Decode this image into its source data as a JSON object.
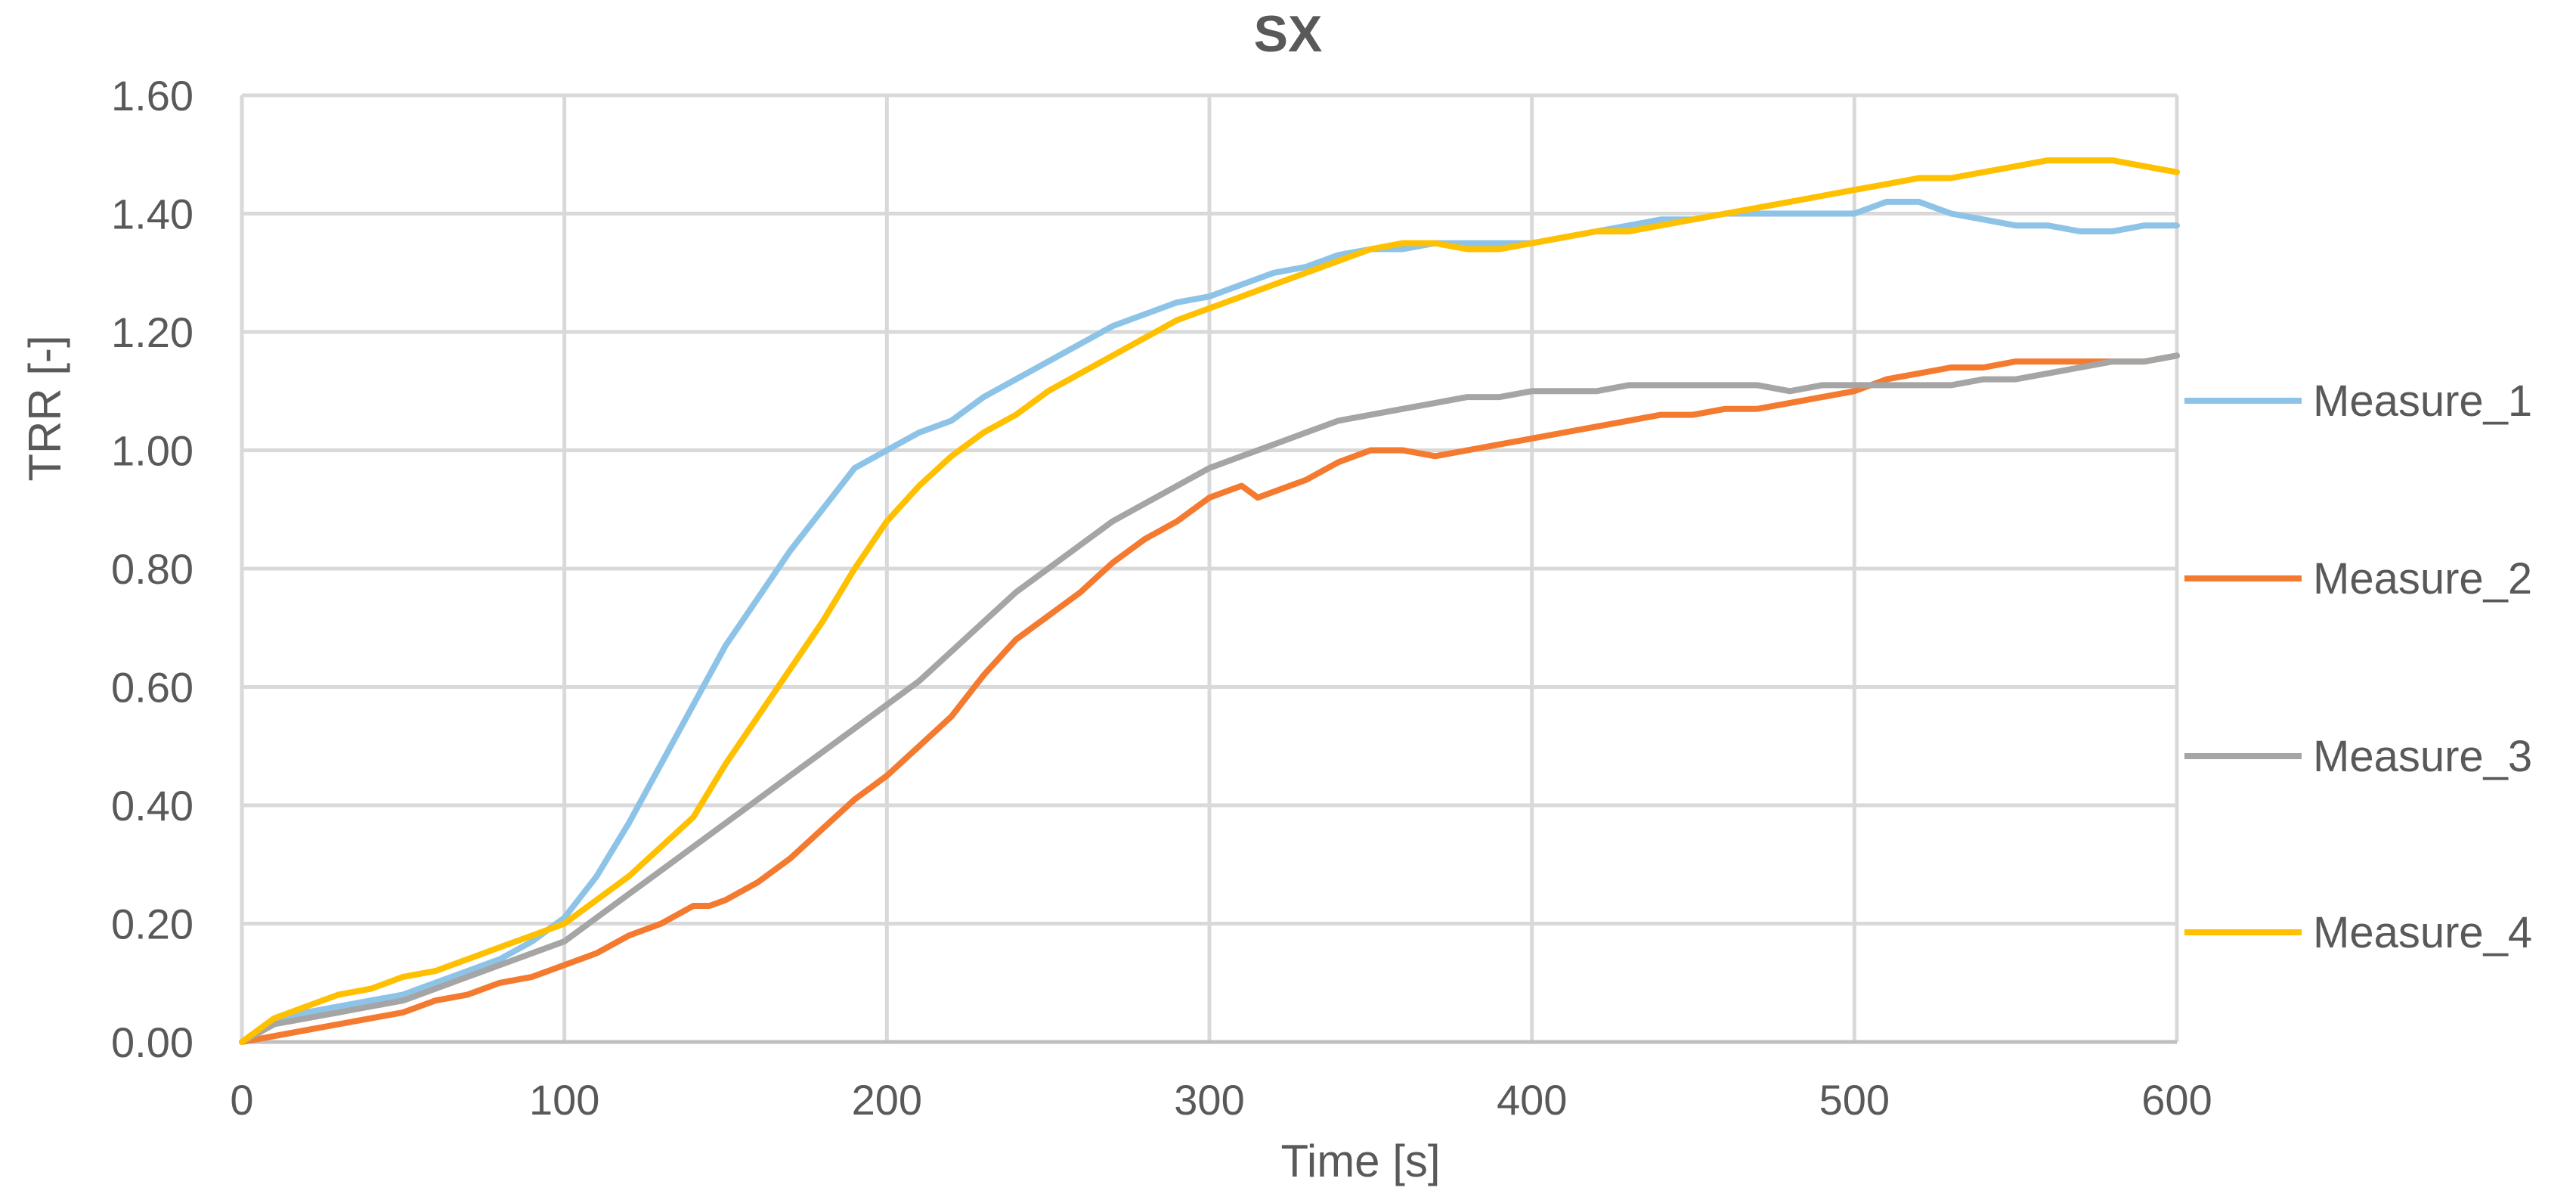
{
  "chart_data": {
    "type": "line",
    "title": "SX",
    "xlabel": "Time [s]",
    "ylabel": "TRR [-]",
    "xlim": [
      0,
      600
    ],
    "ylim": [
      0,
      1.6
    ],
    "xticks": [
      0,
      100,
      200,
      300,
      400,
      500,
      600
    ],
    "yticks": [
      0,
      0.2,
      0.4,
      0.6,
      0.8,
      1.0,
      1.2,
      1.4,
      1.6
    ],
    "xtick_labels": [
      "0",
      "100",
      "200",
      "300",
      "400",
      "500",
      "600"
    ],
    "ytick_labels": [
      "0.00",
      "0.20",
      "0.40",
      "0.60",
      "0.80",
      "1.00",
      "1.20",
      "1.40",
      "1.60"
    ],
    "grid": true,
    "legend_position": "right",
    "series": [
      {
        "name": "Measure_1",
        "color": "#8EC3E8",
        "x": [
          0,
          10,
          20,
          30,
          40,
          50,
          60,
          70,
          80,
          90,
          100,
          110,
          120,
          130,
          140,
          150,
          160,
          170,
          180,
          190,
          200,
          210,
          220,
          230,
          240,
          250,
          260,
          270,
          280,
          290,
          300,
          310,
          320,
          330,
          340,
          350,
          360,
          370,
          380,
          390,
          400,
          410,
          420,
          430,
          440,
          450,
          460,
          470,
          480,
          490,
          500,
          510,
          520,
          530,
          540,
          550,
          560,
          570,
          580,
          590,
          600
        ],
        "y": [
          0.0,
          0.03,
          0.05,
          0.06,
          0.07,
          0.08,
          0.1,
          0.12,
          0.14,
          0.17,
          0.21,
          0.28,
          0.37,
          0.47,
          0.57,
          0.67,
          0.75,
          0.83,
          0.9,
          0.97,
          1.0,
          1.03,
          1.05,
          1.09,
          1.12,
          1.15,
          1.18,
          1.21,
          1.23,
          1.25,
          1.26,
          1.28,
          1.3,
          1.31,
          1.33,
          1.34,
          1.34,
          1.35,
          1.35,
          1.35,
          1.35,
          1.36,
          1.37,
          1.38,
          1.39,
          1.39,
          1.4,
          1.4,
          1.4,
          1.4,
          1.4,
          1.42,
          1.42,
          1.4,
          1.39,
          1.38,
          1.38,
          1.37,
          1.37,
          1.38,
          1.38
        ]
      },
      {
        "name": "Measure_2",
        "color": "#F47A30",
        "x": [
          0,
          10,
          20,
          30,
          40,
          50,
          60,
          70,
          80,
          90,
          100,
          110,
          120,
          130,
          140,
          145,
          150,
          160,
          170,
          180,
          190,
          200,
          210,
          220,
          230,
          240,
          250,
          260,
          270,
          280,
          290,
          300,
          305,
          310,
          315,
          320,
          330,
          340,
          350,
          360,
          370,
          380,
          390,
          400,
          410,
          420,
          430,
          440,
          450,
          460,
          470,
          480,
          490,
          500,
          510,
          520,
          530,
          540,
          550,
          560,
          570,
          580,
          590,
          600
        ],
        "y": [
          0.0,
          0.01,
          0.02,
          0.03,
          0.04,
          0.05,
          0.07,
          0.08,
          0.1,
          0.11,
          0.13,
          0.15,
          0.18,
          0.2,
          0.23,
          0.23,
          0.24,
          0.27,
          0.31,
          0.36,
          0.41,
          0.45,
          0.5,
          0.55,
          0.62,
          0.68,
          0.72,
          0.76,
          0.81,
          0.85,
          0.88,
          0.92,
          0.93,
          0.94,
          0.92,
          0.93,
          0.95,
          0.98,
          1.0,
          1.0,
          0.99,
          1.0,
          1.01,
          1.02,
          1.03,
          1.04,
          1.05,
          1.06,
          1.06,
          1.07,
          1.07,
          1.08,
          1.09,
          1.1,
          1.12,
          1.13,
          1.14,
          1.14,
          1.15,
          1.15,
          1.15,
          1.15,
          1.15,
          1.16
        ]
      },
      {
        "name": "Measure_3",
        "color": "#A5A5A5",
        "x": [
          0,
          10,
          20,
          30,
          40,
          50,
          60,
          70,
          80,
          90,
          100,
          110,
          120,
          130,
          140,
          150,
          160,
          170,
          180,
          190,
          200,
          210,
          220,
          230,
          240,
          250,
          260,
          270,
          280,
          290,
          300,
          310,
          320,
          330,
          340,
          350,
          360,
          370,
          380,
          390,
          400,
          410,
          420,
          430,
          440,
          450,
          460,
          470,
          480,
          490,
          500,
          510,
          520,
          530,
          540,
          550,
          560,
          570,
          580,
          590,
          600
        ],
        "y": [
          0.0,
          0.03,
          0.04,
          0.05,
          0.06,
          0.07,
          0.09,
          0.11,
          0.13,
          0.15,
          0.17,
          0.21,
          0.25,
          0.29,
          0.33,
          0.37,
          0.41,
          0.45,
          0.49,
          0.53,
          0.57,
          0.61,
          0.66,
          0.71,
          0.76,
          0.8,
          0.84,
          0.88,
          0.91,
          0.94,
          0.97,
          0.99,
          1.01,
          1.03,
          1.05,
          1.06,
          1.07,
          1.08,
          1.09,
          1.09,
          1.1,
          1.1,
          1.1,
          1.11,
          1.11,
          1.11,
          1.11,
          1.11,
          1.1,
          1.11,
          1.11,
          1.11,
          1.11,
          1.11,
          1.12,
          1.12,
          1.13,
          1.14,
          1.15,
          1.15,
          1.16
        ]
      },
      {
        "name": "Measure_4",
        "color": "#FFC000",
        "x": [
          0,
          10,
          20,
          30,
          40,
          50,
          60,
          70,
          80,
          90,
          100,
          110,
          120,
          130,
          140,
          150,
          160,
          170,
          180,
          190,
          200,
          210,
          220,
          230,
          240,
          250,
          260,
          270,
          280,
          290,
          300,
          310,
          320,
          330,
          340,
          350,
          360,
          370,
          380,
          390,
          400,
          410,
          420,
          430,
          440,
          450,
          460,
          470,
          480,
          490,
          500,
          510,
          520,
          530,
          540,
          550,
          560,
          570,
          580,
          590,
          600
        ],
        "y": [
          0.0,
          0.04,
          0.06,
          0.08,
          0.09,
          0.11,
          0.12,
          0.14,
          0.16,
          0.18,
          0.2,
          0.24,
          0.28,
          0.33,
          0.38,
          0.47,
          0.55,
          0.63,
          0.71,
          0.8,
          0.88,
          0.94,
          0.99,
          1.03,
          1.06,
          1.1,
          1.13,
          1.16,
          1.19,
          1.22,
          1.24,
          1.26,
          1.28,
          1.3,
          1.32,
          1.34,
          1.35,
          1.35,
          1.34,
          1.34,
          1.35,
          1.36,
          1.37,
          1.37,
          1.38,
          1.39,
          1.4,
          1.41,
          1.42,
          1.43,
          1.44,
          1.45,
          1.46,
          1.46,
          1.47,
          1.48,
          1.49,
          1.49,
          1.49,
          1.48,
          1.47
        ]
      }
    ]
  }
}
